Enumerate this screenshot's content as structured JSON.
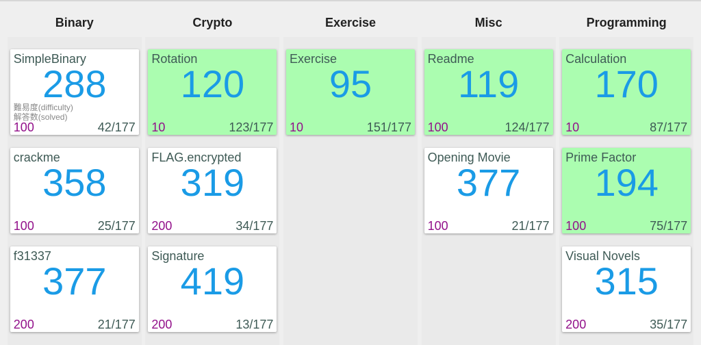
{
  "tooltip": {
    "difficulty": "難易度(difficulty)",
    "solved": "解答数(solved)"
  },
  "colors": {
    "solved_bg": "#abfdb0",
    "points": "#1a9be6",
    "difficulty": "#92108a"
  },
  "columns": [
    {
      "title": "Binary",
      "cards": [
        {
          "name": "SimpleBinary",
          "points": "288",
          "difficulty": "100",
          "solved": "42/177",
          "is_solved": false
        },
        {
          "name": "crackme",
          "points": "358",
          "difficulty": "100",
          "solved": "25/177",
          "is_solved": false
        },
        {
          "name": "f31337",
          "points": "377",
          "difficulty": "200",
          "solved": "21/177",
          "is_solved": false
        }
      ]
    },
    {
      "title": "Crypto",
      "cards": [
        {
          "name": "Rotation",
          "points": "120",
          "difficulty": "10",
          "solved": "123/177",
          "is_solved": true
        },
        {
          "name": "FLAG.encrypted",
          "points": "319",
          "difficulty": "200",
          "solved": "34/177",
          "is_solved": false
        },
        {
          "name": "Signature",
          "points": "419",
          "difficulty": "200",
          "solved": "13/177",
          "is_solved": false
        }
      ]
    },
    {
      "title": "Exercise",
      "cards": [
        {
          "name": "Exercise",
          "points": "95",
          "difficulty": "10",
          "solved": "151/177",
          "is_solved": true
        }
      ]
    },
    {
      "title": "Misc",
      "cards": [
        {
          "name": "Readme",
          "points": "119",
          "difficulty": "100",
          "solved": "124/177",
          "is_solved": true
        },
        {
          "name": "Opening Movie",
          "points": "377",
          "difficulty": "100",
          "solved": "21/177",
          "is_solved": false
        }
      ]
    },
    {
      "title": "Programming",
      "cards": [
        {
          "name": "Calculation",
          "points": "170",
          "difficulty": "10",
          "solved": "87/177",
          "is_solved": true
        },
        {
          "name": "Prime Factor",
          "points": "194",
          "difficulty": "100",
          "solved": "75/177",
          "is_solved": true
        },
        {
          "name": "Visual Novels",
          "points": "315",
          "difficulty": "200",
          "solved": "35/177",
          "is_solved": false
        }
      ]
    }
  ]
}
